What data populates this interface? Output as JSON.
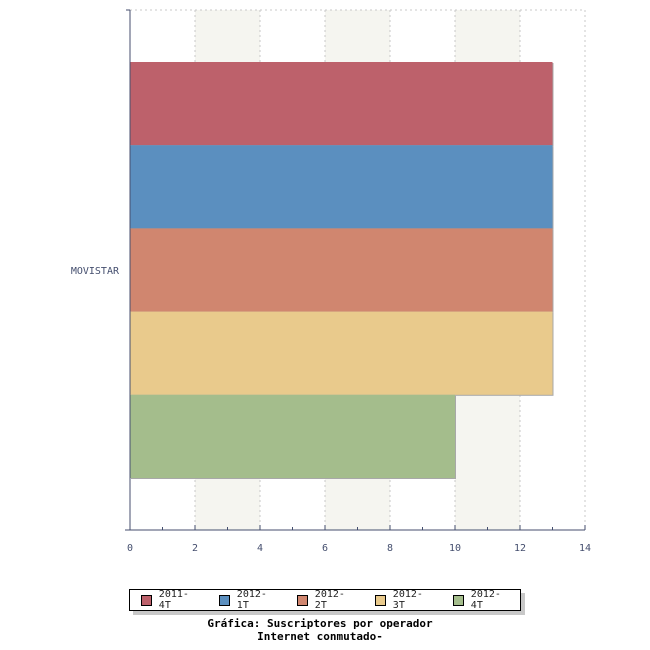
{
  "chart_data": {
    "type": "bar",
    "orientation": "horizontal",
    "categories": [
      "MOVISTAR"
    ],
    "series": [
      {
        "name": "2011-4T",
        "values": [
          13
        ],
        "color": "#bd616b"
      },
      {
        "name": "2012-1T",
        "values": [
          13
        ],
        "color": "#5b8fbf"
      },
      {
        "name": "2012-2T",
        "values": [
          13
        ],
        "color": "#d0866f"
      },
      {
        "name": "2012-3T",
        "values": [
          13
        ],
        "color": "#e9ca8c"
      },
      {
        "name": "2012-4T",
        "values": [
          10
        ],
        "color": "#a4bd8c"
      }
    ],
    "xlim": [
      0,
      14
    ],
    "xticks": [
      "0",
      "2",
      "4",
      "6",
      "8",
      "10",
      "12",
      "14"
    ],
    "title": "Gráfica: Suscriptores por operador",
    "subtitle": "Internet conmutado-",
    "legend_position": "bottom",
    "grid": true
  }
}
